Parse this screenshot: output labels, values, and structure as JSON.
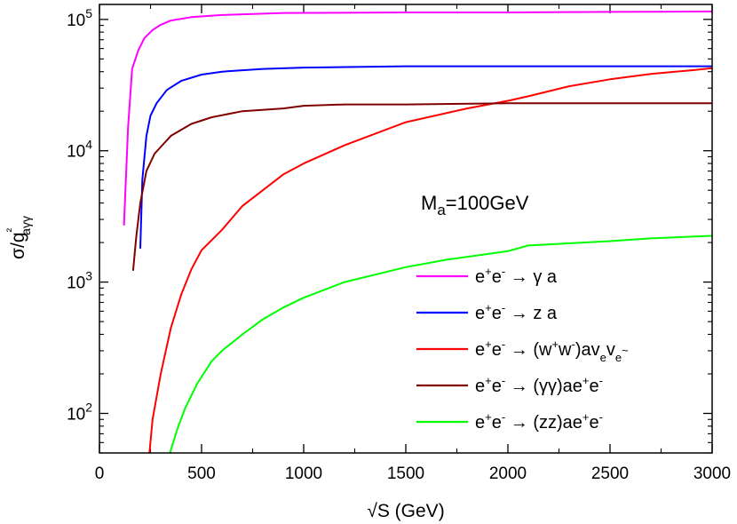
{
  "chart_data": {
    "type": "line",
    "title": "",
    "xlabel": "√S (GeV)",
    "ylabel": "σ/g²aγγ",
    "xlim": [
      0,
      3000
    ],
    "ylim": [
      50,
      130000
    ],
    "yscale": "log",
    "grid": false,
    "legend_position": "bottom-right",
    "x_ticks": [
      "0",
      "500",
      "1000",
      "1500",
      "2000",
      "2500",
      "3000"
    ],
    "y_ticks": [
      {
        "base": "10",
        "exp": "2",
        "value": 100
      },
      {
        "base": "10",
        "exp": "3",
        "value": 1000
      },
      {
        "base": "10",
        "exp": "4",
        "value": 10000
      },
      {
        "base": "10",
        "exp": "5",
        "value": 100000
      }
    ],
    "annotation": {
      "text": "M",
      "sub": "a",
      "rest": "=100GeV"
    },
    "series": [
      {
        "name": "e+e- → γ a",
        "color": "#ff00ff",
        "points": [
          [
            120,
            2700
          ],
          [
            140,
            15000
          ],
          [
            160,
            42000
          ],
          [
            190,
            58000
          ],
          [
            220,
            72000
          ],
          [
            260,
            83000
          ],
          [
            300,
            91000
          ],
          [
            350,
            98000
          ],
          [
            450,
            104000
          ],
          [
            600,
            108000
          ],
          [
            900,
            112000
          ],
          [
            1500,
            113000
          ],
          [
            2000,
            113000
          ],
          [
            2500,
            114000
          ],
          [
            3000,
            115000
          ]
        ]
      },
      {
        "name": "e+e- → z a",
        "color": "#0000ff",
        "points": [
          [
            200,
            1800
          ],
          [
            210,
            6000
          ],
          [
            230,
            13000
          ],
          [
            250,
            18500
          ],
          [
            280,
            23000
          ],
          [
            330,
            29000
          ],
          [
            400,
            34000
          ],
          [
            500,
            38000
          ],
          [
            600,
            40000
          ],
          [
            800,
            42000
          ],
          [
            1000,
            43000
          ],
          [
            1500,
            44000
          ],
          [
            2000,
            44000
          ],
          [
            2500,
            44000
          ],
          [
            3000,
            44000
          ]
        ]
      },
      {
        "name": "e+e- → (w+w-)aveve~",
        "color": "#ff0000",
        "points": [
          [
            245,
            50
          ],
          [
            260,
            90
          ],
          [
            300,
            200
          ],
          [
            350,
            450
          ],
          [
            400,
            800
          ],
          [
            450,
            1250
          ],
          [
            500,
            1750
          ],
          [
            600,
            2500
          ],
          [
            700,
            3800
          ],
          [
            800,
            5000
          ],
          [
            900,
            6600
          ],
          [
            1000,
            8000
          ],
          [
            1200,
            11000
          ],
          [
            1500,
            16500
          ],
          [
            1800,
            21000
          ],
          [
            2000,
            24000
          ],
          [
            2100,
            26000
          ],
          [
            2300,
            31000
          ],
          [
            2500,
            35000
          ],
          [
            2700,
            38500
          ],
          [
            2900,
            41000
          ],
          [
            3000,
            42500
          ]
        ]
      },
      {
        "name": "e+e- → (γγ)ae+e-",
        "color": "#800000",
        "points": [
          [
            165,
            1220
          ],
          [
            180,
            2200
          ],
          [
            200,
            4000
          ],
          [
            230,
            7000
          ],
          [
            270,
            9500
          ],
          [
            350,
            13000
          ],
          [
            450,
            16000
          ],
          [
            550,
            18000
          ],
          [
            700,
            20000
          ],
          [
            900,
            21000
          ],
          [
            1000,
            22000
          ],
          [
            1200,
            22500
          ],
          [
            1500,
            22500
          ],
          [
            2000,
            23000
          ],
          [
            2500,
            23000
          ],
          [
            3000,
            23000
          ]
        ]
      },
      {
        "name": "e+e- → (zz)ae+e-",
        "color": "#00ff00",
        "points": [
          [
            345,
            50
          ],
          [
            380,
            75
          ],
          [
            420,
            110
          ],
          [
            480,
            170
          ],
          [
            550,
            250
          ],
          [
            600,
            300
          ],
          [
            700,
            400
          ],
          [
            800,
            520
          ],
          [
            900,
            640
          ],
          [
            1000,
            760
          ],
          [
            1200,
            1000
          ],
          [
            1500,
            1300
          ],
          [
            1700,
            1480
          ],
          [
            2000,
            1720
          ],
          [
            2100,
            1900
          ],
          [
            2500,
            2050
          ],
          [
            2700,
            2150
          ],
          [
            3000,
            2250
          ]
        ]
      }
    ]
  }
}
